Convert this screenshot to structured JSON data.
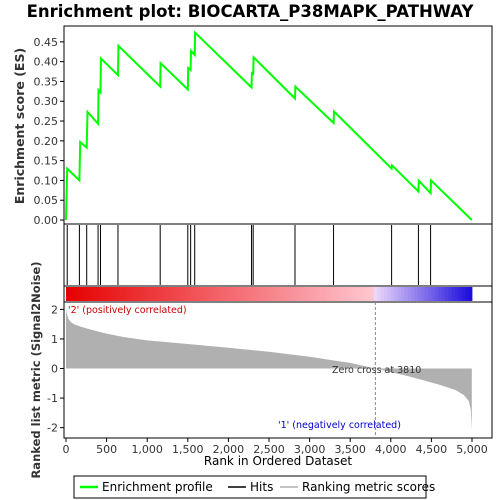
{
  "chart_data": {
    "type": "line",
    "title": "Enrichment plot: BIOCARTA_P38MAPK_PATHWAY",
    "enrichment_panel": {
      "ylabel": "Enrichment score (ES)",
      "yticks": [
        0.0,
        0.05,
        0.1,
        0.15,
        0.2,
        0.25,
        0.3,
        0.35,
        0.4,
        0.45
      ],
      "ytick_labels": [
        "0.00",
        "0.05",
        "0.10",
        "0.15",
        "0.20",
        "0.25",
        "0.30",
        "0.35",
        "0.40",
        "0.45"
      ],
      "ylim": [
        -0.01,
        0.49
      ],
      "series": [
        {
          "name": "Enrichment profile",
          "color": "#00ff00",
          "x": [
            0,
            15,
            15,
            165,
            175,
            255,
            265,
            395,
            400,
            425,
            430,
            640,
            645,
            1160,
            1165,
            1500,
            1505,
            1535,
            1540,
            1585,
            1590,
            2285,
            2290,
            2305,
            2310,
            2820,
            2825,
            3295,
            3300,
            4010,
            4015,
            4340,
            4345,
            4490,
            4495,
            4998
          ],
          "y": [
            0.0,
            0.13,
            0.13,
            0.1,
            0.197,
            0.183,
            0.273,
            0.243,
            0.328,
            0.322,
            0.408,
            0.366,
            0.44,
            0.337,
            0.396,
            0.33,
            0.384,
            0.379,
            0.427,
            0.417,
            0.473,
            0.335,
            0.371,
            0.369,
            0.411,
            0.307,
            0.337,
            0.245,
            0.274,
            0.13,
            0.138,
            0.072,
            0.099,
            0.068,
            0.1,
            0.0
          ]
        }
      ]
    },
    "hits": [
      15,
      165,
      255,
      395,
      425,
      640,
      1160,
      1500,
      1535,
      1585,
      2285,
      2305,
      2820,
      3295,
      4010,
      4340,
      4490
    ],
    "ranking_panel": {
      "ylabel": "Ranked list metric (Signal2Noise)",
      "xlabel": "Rank in Ordered Dataset",
      "yticks": [
        -2,
        -1,
        0,
        1,
        2
      ],
      "ylim": [
        -2.35,
        2.25
      ],
      "xlim": [
        0,
        5000
      ],
      "xticks": [
        0,
        500,
        1000,
        1500,
        2000,
        2500,
        3000,
        3500,
        4000,
        4500,
        5000
      ],
      "xtick_labels": [
        "0",
        "500",
        "1,000",
        "1,500",
        "2,000",
        "2,500",
        "3,000",
        "3,500",
        "4,000",
        "4,500",
        "5,000"
      ],
      "metric_curve": {
        "x": [
          0,
          10,
          30,
          60,
          100,
          150,
          200,
          300,
          400,
          500,
          700,
          1000,
          1500,
          2000,
          2500,
          3000,
          3300,
          3500,
          3810,
          4000,
          4200,
          4400,
          4600,
          4800,
          4900,
          4960,
          4985,
          4998
        ],
        "y": [
          2.0,
          1.85,
          1.68,
          1.57,
          1.5,
          1.45,
          1.4,
          1.32,
          1.25,
          1.18,
          1.07,
          0.95,
          0.83,
          0.7,
          0.57,
          0.4,
          0.27,
          0.19,
          0.0,
          -0.12,
          -0.25,
          -0.4,
          -0.55,
          -0.73,
          -0.9,
          -1.1,
          -1.4,
          -2.1
        ]
      },
      "zero_cross": 3810,
      "zero_cross_label": "Zero cross at 3810",
      "pos_label": "'2' (positively correlated)",
      "neg_label": "'1' (negatively correlated)"
    },
    "legend": [
      "Enrichment profile",
      "Hits",
      "Ranking metric scores"
    ]
  },
  "colors": {
    "profile": "#00ff00",
    "metric_fill": "#b0b0b0",
    "pos_label": "#cc0000",
    "neg_label": "#0000cc",
    "title": "#000000"
  }
}
